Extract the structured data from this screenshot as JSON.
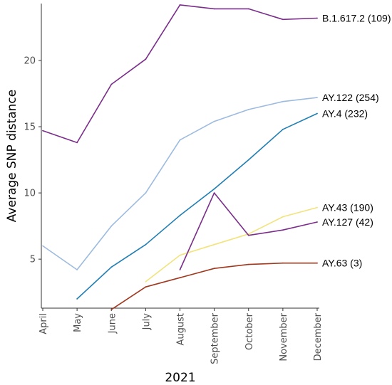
{
  "chart_data": {
    "type": "line",
    "title": "",
    "xlabel": "2021",
    "ylabel": "Average SNP distance",
    "categories": [
      "April",
      "May",
      "June",
      "July",
      "August",
      "September",
      "October",
      "November",
      "December"
    ],
    "ylim": [
      1.3,
      24.3
    ],
    "yticks": [
      5,
      10,
      15,
      20
    ],
    "grid": false,
    "legend": "direct labels at line ends",
    "series": [
      {
        "name": "B.1.617.2 (109)",
        "color": "#7b2d8b",
        "values": [
          14.7,
          13.8,
          18.2,
          20.1,
          24.2,
          23.9,
          23.9,
          23.1,
          23.2
        ]
      },
      {
        "name": "AY.122 (254)",
        "color": "#9dbbe0",
        "values": [
          6.0,
          4.2,
          7.5,
          10.0,
          14.0,
          15.4,
          16.3,
          16.9,
          17.2
        ]
      },
      {
        "name": "AY.4 (232)",
        "color": "#1f7eb4",
        "values": [
          null,
          2.0,
          4.4,
          6.1,
          8.3,
          10.3,
          12.5,
          14.8,
          16.0
        ]
      },
      {
        "name": "AY.43 (190)",
        "color": "#f2e37c",
        "values": [
          null,
          null,
          null,
          3.3,
          5.3,
          6.1,
          6.9,
          8.2,
          8.9
        ]
      },
      {
        "name": "AY.127 (42)",
        "color": "#7b2d8b",
        "values": [
          null,
          null,
          null,
          null,
          4.2,
          10.0,
          6.8,
          7.2,
          7.8
        ]
      },
      {
        "name": "AY.63 (3)",
        "color": "#a0381e",
        "values": [
          null,
          null,
          1.2,
          2.9,
          3.6,
          4.3,
          4.6,
          4.7,
          4.7
        ]
      }
    ]
  }
}
